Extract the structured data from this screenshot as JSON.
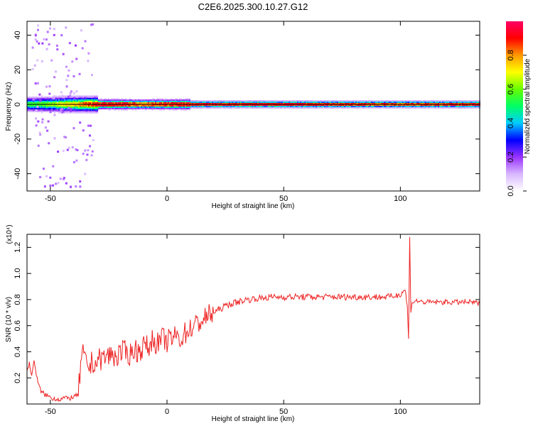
{
  "figure_title": "C2E6.2025.300.10.27.G12",
  "chart_data": [
    {
      "type": "heatmap",
      "title": "",
      "xlabel": "Height of straight line (km)",
      "ylabel": "Frequency (Hz)",
      "xlim": [
        -60,
        134
      ],
      "ylim": [
        -50,
        48
      ],
      "xticks": [
        -50,
        0,
        50,
        100
      ],
      "yticks": [
        -40,
        -20,
        0,
        20,
        40
      ],
      "colorbar": {
        "label": "Normalized spectral amplitude",
        "range": [
          0,
          1
        ],
        "ticks": [
          "0.0",
          "0.2",
          "0.4",
          "0.6",
          "0.8"
        ],
        "colormap": [
          "#ffffff",
          "#d9b8ff",
          "#9933ff",
          "#0000ff",
          "#00ccff",
          "#00ff66",
          "#66ff00",
          "#ffff00",
          "#ff9900",
          "#ff0000",
          "#ff0066"
        ]
      },
      "line_frequency_hz": 0,
      "line_band_hz": [
        -2,
        2
      ],
      "energy_profile": [
        {
          "x": -60,
          "v": 0.55
        },
        {
          "x": -55,
          "v": 0.6
        },
        {
          "x": -50,
          "v": 0.65
        },
        {
          "x": -45,
          "v": 0.75
        },
        {
          "x": -40,
          "v": 0.8
        },
        {
          "x": -35,
          "v": 0.9
        },
        {
          "x": -30,
          "v": 0.95
        },
        {
          "x": -25,
          "v": 0.95
        },
        {
          "x": -20,
          "v": 0.98
        },
        {
          "x": -12,
          "v": 0.85
        },
        {
          "x": -5,
          "v": 0.9
        },
        {
          "x": 0,
          "v": 0.92
        },
        {
          "x": 10,
          "v": 0.97
        },
        {
          "x": 50,
          "v": 0.98
        },
        {
          "x": 100,
          "v": 0.9
        },
        {
          "x": 134,
          "v": 0.97
        }
      ]
    },
    {
      "type": "line",
      "title": "",
      "xlabel": "Height of straight line (km)",
      "ylabel": "SNR (10 * v/v)",
      "y_multiplier": "(x10⁴)",
      "xlim": [
        -60,
        134
      ],
      "ylim": [
        0,
        1.3
      ],
      "xticks": [
        -50,
        0,
        50,
        100
      ],
      "yticks": [
        0.2,
        0.4,
        0.6,
        0.8,
        1.0,
        1.2
      ],
      "color": "#ee2222",
      "series": [
        {
          "x": [
            -60,
            -59,
            -58,
            -57,
            -56,
            -55,
            -54,
            -53,
            -52,
            -51,
            -50,
            -49,
            -48,
            -47,
            -46,
            -45,
            -44,
            -43,
            -42,
            -41,
            -40,
            -39,
            -38,
            -37,
            -36,
            -35,
            -34,
            -33,
            -32,
            -31,
            -30,
            -28,
            -26,
            -24,
            -22,
            -20,
            -18,
            -16,
            -14,
            -12,
            -10,
            -8,
            -6,
            -4,
            -2,
            0,
            2,
            4,
            6,
            8,
            10,
            12,
            14,
            16,
            18,
            20,
            22,
            24,
            26,
            28,
            30,
            32,
            34,
            36,
            38,
            40,
            45,
            50,
            55,
            60,
            65,
            70,
            75,
            80,
            85,
            90,
            95,
            98,
            100,
            102,
            103,
            103.5,
            104,
            104.5,
            105,
            107,
            110,
            115,
            120,
            125,
            130,
            134
          ],
          "y": [
            0.25,
            0.32,
            0.2,
            0.35,
            0.22,
            0.14,
            0.1,
            0.08,
            0.07,
            0.06,
            0.05,
            0.045,
            0.04,
            0.04,
            0.035,
            0.04,
            0.05,
            0.04,
            0.045,
            0.05,
            0.055,
            0.06,
            0.07,
            0.3,
            0.38,
            0.32,
            0.3,
            0.28,
            0.33,
            0.3,
            0.33,
            0.35,
            0.36,
            0.38,
            0.36,
            0.39,
            0.4,
            0.38,
            0.42,
            0.4,
            0.45,
            0.43,
            0.5,
            0.46,
            0.5,
            0.48,
            0.5,
            0.52,
            0.5,
            0.55,
            0.58,
            0.6,
            0.63,
            0.65,
            0.68,
            0.7,
            0.72,
            0.74,
            0.76,
            0.77,
            0.78,
            0.79,
            0.8,
            0.8,
            0.81,
            0.81,
            0.82,
            0.82,
            0.82,
            0.82,
            0.82,
            0.82,
            0.82,
            0.82,
            0.82,
            0.82,
            0.82,
            0.83,
            0.84,
            0.88,
            0.75,
            0.5,
            1.28,
            0.7,
            0.78,
            0.79,
            0.78,
            0.78,
            0.78,
            0.78,
            0.78,
            0.77
          ]
        }
      ]
    }
  ]
}
